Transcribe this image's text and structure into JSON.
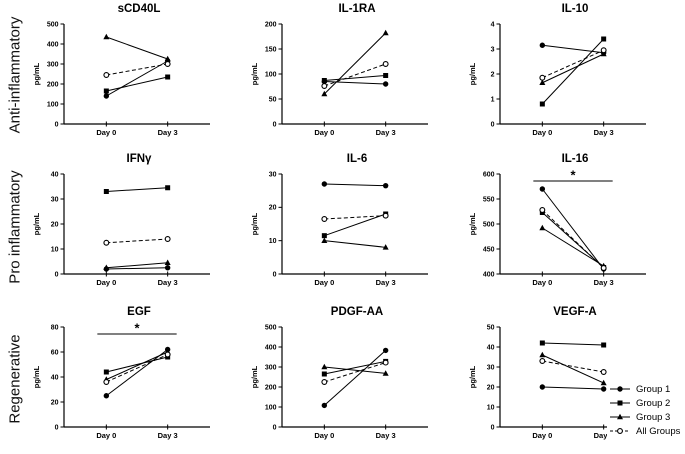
{
  "figure": {
    "row_labels": [
      "Anti-inflammatory",
      "Pro inflammatory",
      "Regenerative"
    ],
    "ylabel": "pg/mL",
    "colors": {
      "foreground": "#000000",
      "background": "#ffffff"
    }
  },
  "legend": {
    "position": "bottom-right",
    "entries": [
      {
        "label": "Group 1",
        "marker": "filled-circle",
        "line": "solid"
      },
      {
        "label": "Group 2",
        "marker": "filled-square",
        "line": "solid"
      },
      {
        "label": "Group 3",
        "marker": "filled-triangle",
        "line": "solid"
      },
      {
        "label": "All Groups",
        "marker": "open-circle",
        "line": "dashed"
      }
    ]
  },
  "chart_data": [
    {
      "type": "line",
      "title": "sCD40L",
      "row": "Anti-inflammatory",
      "ylabel": "pg/mL",
      "categories": [
        "Day 0",
        "Day 3"
      ],
      "ylim": [
        0,
        500
      ],
      "ytick_step": 100,
      "significance": null,
      "series": [
        {
          "name": "Group 1",
          "values": [
            140,
            315
          ]
        },
        {
          "name": "Group 2",
          "values": [
            165,
            235
          ]
        },
        {
          "name": "Group 3",
          "values": [
            435,
            325
          ]
        },
        {
          "name": "All Groups",
          "values": [
            245,
            300
          ]
        }
      ]
    },
    {
      "type": "line",
      "title": "IL-1RA",
      "row": "Anti-inflammatory",
      "ylabel": "pg/mL",
      "categories": [
        "Day 0",
        "Day 3"
      ],
      "ylim": [
        0,
        200
      ],
      "ytick_step": 50,
      "significance": null,
      "series": [
        {
          "name": "Group 1",
          "values": [
            85,
            80
          ]
        },
        {
          "name": "Group 2",
          "values": [
            87,
            97
          ]
        },
        {
          "name": "Group 3",
          "values": [
            60,
            182
          ]
        },
        {
          "name": "All Groups",
          "values": [
            76,
            120
          ]
        }
      ]
    },
    {
      "type": "line",
      "title": "IL-10",
      "row": "Anti-inflammatory",
      "ylabel": "pg/mL",
      "categories": [
        "Day 0",
        "Day 3"
      ],
      "ylim": [
        0,
        4
      ],
      "ytick_step": 1,
      "significance": null,
      "series": [
        {
          "name": "Group 1",
          "values": [
            3.15,
            2.85
          ]
        },
        {
          "name": "Group 2",
          "values": [
            0.8,
            3.4
          ]
        },
        {
          "name": "Group 3",
          "values": [
            1.65,
            2.8
          ]
        },
        {
          "name": "All Groups",
          "values": [
            1.85,
            2.95
          ]
        }
      ]
    },
    {
      "type": "line",
      "title": "IFNγ",
      "row": "Pro inflammatory",
      "ylabel": "pg/mL",
      "categories": [
        "Day 0",
        "Day 3"
      ],
      "ylim": [
        0,
        40
      ],
      "ytick_step": 10,
      "significance": null,
      "series": [
        {
          "name": "Group 1",
          "values": [
            2,
            2.5
          ]
        },
        {
          "name": "Group 2",
          "values": [
            33,
            34.5
          ]
        },
        {
          "name": "Group 3",
          "values": [
            2.5,
            4.5
          ]
        },
        {
          "name": "All Groups",
          "values": [
            12.5,
            14
          ]
        }
      ]
    },
    {
      "type": "line",
      "title": "IL-6",
      "row": "Pro inflammatory",
      "ylabel": "pg/mL",
      "categories": [
        "Day 0",
        "Day 3"
      ],
      "ylim": [
        0,
        30
      ],
      "ytick_step": 10,
      "significance": null,
      "series": [
        {
          "name": "Group 1",
          "values": [
            27,
            26.5
          ]
        },
        {
          "name": "Group 2",
          "values": [
            11.5,
            18
          ]
        },
        {
          "name": "Group 3",
          "values": [
            10,
            8
          ]
        },
        {
          "name": "All Groups",
          "values": [
            16.5,
            17.5
          ]
        }
      ]
    },
    {
      "type": "line",
      "title": "IL-16",
      "row": "Pro inflammatory",
      "ylabel": "pg/mL",
      "categories": [
        "Day 0",
        "Day 3"
      ],
      "ylim": [
        400,
        600
      ],
      "ytick_step": 50,
      "significance": "*",
      "series": [
        {
          "name": "Group 1",
          "values": [
            570,
            410
          ]
        },
        {
          "name": "Group 2",
          "values": [
            523,
            413
          ]
        },
        {
          "name": "Group 3",
          "values": [
            492,
            416
          ]
        },
        {
          "name": "All Groups",
          "values": [
            528,
            412
          ]
        }
      ]
    },
    {
      "type": "line",
      "title": "EGF",
      "row": "Regenerative",
      "ylabel": "pg/mL",
      "categories": [
        "Day 0",
        "Day 3"
      ],
      "ylim": [
        0,
        80
      ],
      "ytick_step": 20,
      "significance": "*",
      "series": [
        {
          "name": "Group 1",
          "values": [
            25,
            62
          ]
        },
        {
          "name": "Group 2",
          "values": [
            44,
            56
          ]
        },
        {
          "name": "Group 3",
          "values": [
            38,
            60
          ]
        },
        {
          "name": "All Groups",
          "values": [
            36,
            58
          ]
        }
      ]
    },
    {
      "type": "line",
      "title": "PDGF-AA",
      "row": "Regenerative",
      "ylabel": "pg/mL",
      "categories": [
        "Day 0",
        "Day 3"
      ],
      "ylim": [
        0,
        500
      ],
      "ytick_step": 100,
      "significance": null,
      "series": [
        {
          "name": "Group 1",
          "values": [
            108,
            383
          ]
        },
        {
          "name": "Group 2",
          "values": [
            265,
            328
          ]
        },
        {
          "name": "Group 3",
          "values": [
            300,
            268
          ]
        },
        {
          "name": "All Groups",
          "values": [
            225,
            322
          ]
        }
      ]
    },
    {
      "type": "line",
      "title": "VEGF-A",
      "row": "Regenerative",
      "ylabel": "pg/mL",
      "categories": [
        "Day 0",
        "Day 3"
      ],
      "ylim": [
        0,
        50
      ],
      "ytick_step": 10,
      "significance": null,
      "series": [
        {
          "name": "Group 1",
          "values": [
            20,
            19
          ]
        },
        {
          "name": "Group 2",
          "values": [
            42,
            41
          ]
        },
        {
          "name": "Group 3",
          "values": [
            36,
            22
          ]
        },
        {
          "name": "All Groups",
          "values": [
            33,
            27.5
          ]
        }
      ]
    }
  ]
}
